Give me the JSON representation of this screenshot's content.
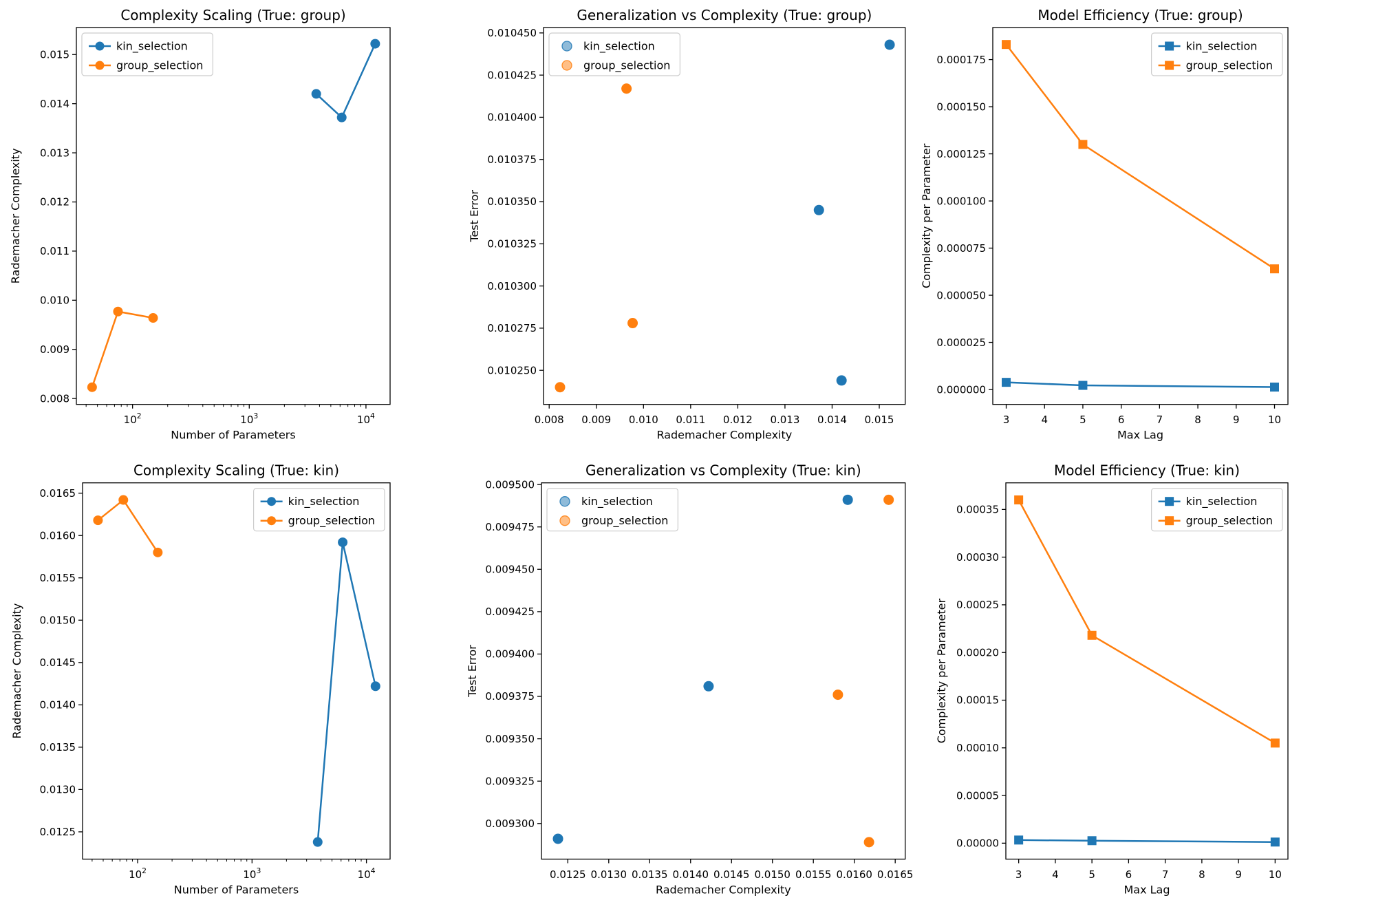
{
  "colors": {
    "kin_selection": "#1f77b4",
    "group_selection": "#ff7f0e",
    "legend_border": "#cccccc",
    "axis": "#000000"
  },
  "chart_data": [
    {
      "id": "complexity-scaling-true-group",
      "type": "line",
      "title": "Complexity Scaling (True: group)",
      "xlabel": "Number of Parameters",
      "ylabel": "Rademacher Complexity",
      "xscale": "log",
      "xlim": [
        33,
        16100
      ],
      "ylim": [
        0.00788,
        0.01555
      ],
      "xticks": {
        "values": [
          100,
          1000,
          10000
        ],
        "labels": [
          "10^2",
          "10^3",
          "10^4"
        ]
      },
      "yticks": {
        "values": [
          0.008,
          0.009,
          0.01,
          0.011,
          0.012,
          0.013,
          0.014,
          0.015
        ],
        "labels": [
          "0.008",
          "0.009",
          "0.010",
          "0.011",
          "0.012",
          "0.013",
          "0.014",
          "0.015"
        ]
      },
      "legend": {
        "loc": "upper left",
        "style": "line"
      },
      "series": [
        {
          "name": "kin_selection",
          "color": "#1f77b4",
          "marker": "circle",
          "x": [
            3750,
            6200,
            12000
          ],
          "y": [
            0.0142,
            0.01372,
            0.01522
          ]
        },
        {
          "name": "group_selection",
          "color": "#ff7f0e",
          "marker": "circle",
          "x": [
            45,
            75,
            150
          ],
          "y": [
            0.00823,
            0.00977,
            0.00964
          ]
        }
      ]
    },
    {
      "id": "generalization-vs-complexity-true-group",
      "type": "scatter",
      "title": "Generalization vs Complexity (True: group)",
      "xlabel": "Rademacher Complexity",
      "ylabel": "Test Error",
      "xscale": "linear",
      "xlim": [
        0.00788,
        0.01555
      ],
      "ylim": [
        0.0102298,
        0.0104532
      ],
      "xticks": {
        "values": [
          0.008,
          0.009,
          0.01,
          0.011,
          0.012,
          0.013,
          0.014,
          0.015
        ],
        "labels": [
          "0.008",
          "0.009",
          "0.010",
          "0.011",
          "0.012",
          "0.013",
          "0.014",
          "0.015"
        ]
      },
      "yticks": {
        "values": [
          0.01025,
          0.010275,
          0.0103,
          0.010325,
          0.01035,
          0.010375,
          0.0104,
          0.010425,
          0.01045
        ],
        "labels": [
          "0.010250",
          "0.010275",
          "0.010300",
          "0.010325",
          "0.010350",
          "0.010375",
          "0.010400",
          "0.010425",
          "0.010450"
        ]
      },
      "legend": {
        "loc": "upper left",
        "style": "scatter"
      },
      "series": [
        {
          "name": "kin_selection",
          "color": "#1f77b4",
          "marker": "circle",
          "x": [
            0.0142,
            0.01372,
            0.01522
          ],
          "y": [
            0.010244,
            0.010345,
            0.010443
          ]
        },
        {
          "name": "group_selection",
          "color": "#ff7f0e",
          "marker": "circle",
          "x": [
            0.00823,
            0.00977,
            0.00964
          ],
          "y": [
            0.01024,
            0.010278,
            0.010417
          ]
        }
      ]
    },
    {
      "id": "model-efficiency-true-group",
      "type": "line",
      "title": "Model Efficiency (True: group)",
      "xlabel": "Max Lag",
      "ylabel": "Complexity per Parameter",
      "xscale": "linear",
      "xlim": [
        2.65,
        10.35
      ],
      "ylim": [
        -7.9e-06,
        0.000192
      ],
      "xticks": {
        "values": [
          3,
          4,
          5,
          6,
          7,
          8,
          9,
          10
        ],
        "labels": [
          "3",
          "4",
          "5",
          "6",
          "7",
          "8",
          "9",
          "10"
        ]
      },
      "yticks": {
        "values": [
          0.0,
          2.5e-05,
          5e-05,
          7.5e-05,
          0.0001,
          0.000125,
          0.00015,
          0.000175
        ],
        "labels": [
          "0.000000",
          "0.000025",
          "0.000050",
          "0.000075",
          "0.000100",
          "0.000125",
          "0.000150",
          "0.000175"
        ]
      },
      "legend": {
        "loc": "upper right",
        "style": "line"
      },
      "series": [
        {
          "name": "kin_selection",
          "color": "#1f77b4",
          "marker": "square",
          "x": [
            3,
            5,
            10
          ],
          "y": [
            3.8e-06,
            2.2e-06,
            1.3e-06
          ]
        },
        {
          "name": "group_selection",
          "color": "#ff7f0e",
          "marker": "square",
          "x": [
            3,
            5,
            10
          ],
          "y": [
            0.000183,
            0.00013,
            6.4e-05
          ]
        }
      ]
    },
    {
      "id": "complexity-scaling-true-kin",
      "type": "line",
      "title": "Complexity Scaling (True: kin)",
      "xlabel": "Number of Parameters",
      "ylabel": "Rademacher Complexity",
      "xscale": "log",
      "xlim": [
        33,
        16100
      ],
      "ylim": [
        0.012178,
        0.016622
      ],
      "xticks": {
        "values": [
          100,
          1000,
          10000
        ],
        "labels": [
          "10^2",
          "10^3",
          "10^4"
        ]
      },
      "yticks": {
        "values": [
          0.0125,
          0.013,
          0.0135,
          0.014,
          0.0145,
          0.015,
          0.0155,
          0.016,
          0.0165
        ],
        "labels": [
          "0.0125",
          "0.0130",
          "0.0135",
          "0.0140",
          "0.0145",
          "0.0150",
          "0.0155",
          "0.0160",
          "0.0165"
        ]
      },
      "legend": {
        "loc": "upper right",
        "style": "line"
      },
      "series": [
        {
          "name": "kin_selection",
          "color": "#1f77b4",
          "marker": "circle",
          "x": [
            3750,
            6200,
            12000
          ],
          "y": [
            0.01238,
            0.01592,
            0.01422
          ]
        },
        {
          "name": "group_selection",
          "color": "#ff7f0e",
          "marker": "circle",
          "x": [
            45,
            75,
            150
          ],
          "y": [
            0.01618,
            0.01642,
            0.0158
          ]
        }
      ]
    },
    {
      "id": "generalization-vs-complexity-true-kin",
      "type": "scatter",
      "title": "Generalization vs Complexity (True: kin)",
      "xlabel": "Rademacher Complexity",
      "ylabel": "Test Error",
      "xscale": "linear",
      "xlim": [
        0.012178,
        0.016622
      ],
      "ylim": [
        0.009279,
        0.009501
      ],
      "xticks": {
        "values": [
          0.0125,
          0.013,
          0.0135,
          0.014,
          0.0145,
          0.015,
          0.0155,
          0.016,
          0.0165
        ],
        "labels": [
          "0.0125",
          "0.0130",
          "0.0135",
          "0.0140",
          "0.0145",
          "0.0150",
          "0.0155",
          "0.0160",
          "0.0165"
        ]
      },
      "yticks": {
        "values": [
          0.0093,
          0.009325,
          0.00935,
          0.009375,
          0.0094,
          0.009425,
          0.00945,
          0.009475,
          0.0095
        ],
        "labels": [
          "0.009300",
          "0.009325",
          "0.009350",
          "0.009375",
          "0.009400",
          "0.009425",
          "0.009450",
          "0.009475",
          "0.009500"
        ]
      },
      "legend": {
        "loc": "upper left",
        "style": "scatter"
      },
      "series": [
        {
          "name": "kin_selection",
          "color": "#1f77b4",
          "marker": "circle",
          "x": [
            0.01238,
            0.01422,
            0.01592
          ],
          "y": [
            0.009291,
            0.009381,
            0.009491
          ]
        },
        {
          "name": "group_selection",
          "color": "#ff7f0e",
          "marker": "circle",
          "x": [
            0.0158,
            0.01618,
            0.01642
          ],
          "y": [
            0.009376,
            0.009289,
            0.009491
          ]
        }
      ]
    },
    {
      "id": "model-efficiency-true-kin",
      "type": "line",
      "title": "Model Efficiency (True: kin)",
      "xlabel": "Max Lag",
      "ylabel": "Complexity per Parameter",
      "xscale": "linear",
      "xlim": [
        2.65,
        10.35
      ],
      "ylim": [
        -1.67e-05,
        0.0003779
      ],
      "xticks": {
        "values": [
          3,
          4,
          5,
          6,
          7,
          8,
          9,
          10
        ],
        "labels": [
          "3",
          "4",
          "5",
          "6",
          "7",
          "8",
          "9",
          "10"
        ]
      },
      "yticks": {
        "values": [
          0.0,
          5e-05,
          0.0001,
          0.00015,
          0.0002,
          0.00025,
          0.0003,
          0.00035
        ],
        "labels": [
          "0.00000",
          "0.00005",
          "0.00010",
          "0.00015",
          "0.00020",
          "0.00025",
          "0.00030",
          "0.00035"
        ]
      },
      "legend": {
        "loc": "upper right",
        "style": "line"
      },
      "series": [
        {
          "name": "kin_selection",
          "color": "#1f77b4",
          "marker": "square",
          "x": [
            3,
            5,
            10
          ],
          "y": [
            3.3e-06,
            2.6e-06,
            1.2e-06
          ]
        },
        {
          "name": "group_selection",
          "color": "#ff7f0e",
          "marker": "square",
          "x": [
            3,
            5,
            10
          ],
          "y": [
            0.00036,
            0.000218,
            0.000105
          ]
        }
      ]
    }
  ]
}
